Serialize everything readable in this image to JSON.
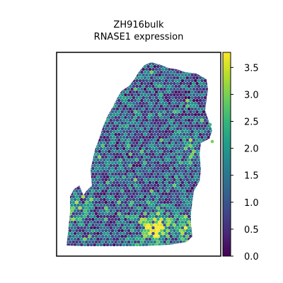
{
  "chart_data": {
    "type": "scatter",
    "title_line1": "ZH916bulk",
    "title_line2": "RNASE1 expression",
    "xlabel": "",
    "ylabel": "",
    "colorbar": {
      "colormap": "viridis",
      "ticks": [
        "0.0",
        "0.5",
        "1.0",
        "1.5",
        "2.0",
        "2.5",
        "3.0",
        "3.5"
      ],
      "range": [
        0.0,
        3.78
      ]
    },
    "colors": {
      "viridis": [
        "#440154",
        "#482878",
        "#3e4989",
        "#31688e",
        "#26828e",
        "#1f9e89",
        "#35b779",
        "#6ece58",
        "#b5de2b",
        "#fde725"
      ],
      "frame": "#000000",
      "background": "#ffffff"
    },
    "grid": false,
    "legend": "none"
  }
}
